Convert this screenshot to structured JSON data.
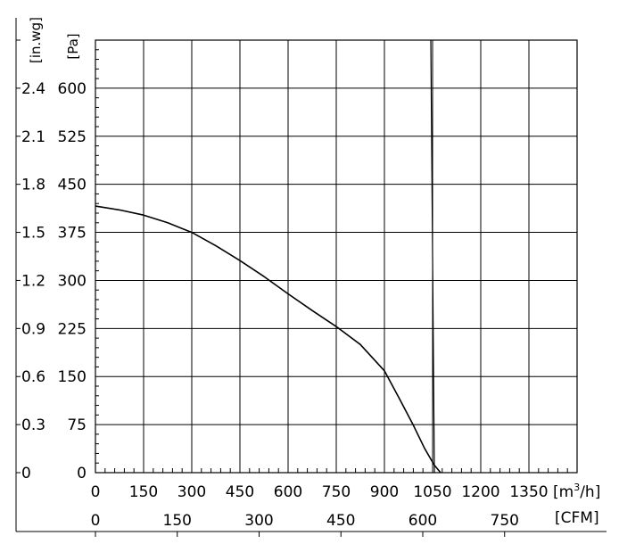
{
  "chart_data": {
    "type": "line",
    "title": "",
    "grid": true,
    "x_axis": {
      "unit_primary": "[m³/h]",
      "unit_primary_base": "[m",
      "unit_primary_sup": "3",
      "unit_primary_tail": "/h]",
      "range_primary": [
        0,
        1500
      ],
      "ticks_primary": [
        "0",
        "150",
        "300",
        "450",
        "600",
        "750",
        "900",
        "1050",
        "1200",
        "1350"
      ],
      "unit_secondary": "[CFM]",
      "ticks_secondary": [
        "0",
        "150",
        "300",
        "450",
        "600",
        "750"
      ]
    },
    "y_axis": {
      "unit_primary": "[Pa]",
      "range_primary": [
        0,
        675
      ],
      "ticks_primary": [
        "0",
        "75",
        "150",
        "225",
        "300",
        "375",
        "450",
        "525",
        "600"
      ],
      "unit_secondary": "[in.wg]",
      "ticks_secondary": [
        "0",
        "0.3",
        "0.6",
        "0.9",
        "1.2",
        "1.5",
        "1.8",
        "2.1",
        "2.4"
      ]
    },
    "series": [
      {
        "x": [
          0,
          75,
          150,
          225,
          300,
          375,
          450,
          525,
          600,
          675,
          750,
          825,
          900,
          945,
          990,
          1025,
          1055,
          1075
        ],
        "y": [
          416,
          410,
          402,
          390,
          375,
          354,
          331,
          306,
          279,
          253,
          228,
          200,
          159,
          117,
          74,
          38,
          12,
          0
        ]
      }
    ],
    "vertical_line": {
      "x": 1050,
      "ymax": 675
    }
  }
}
